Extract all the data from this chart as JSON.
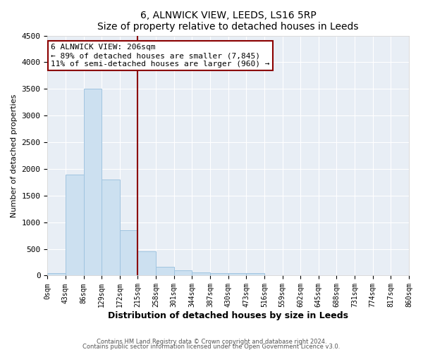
{
  "title": "6, ALNWICK VIEW, LEEDS, LS16 5RP",
  "subtitle": "Size of property relative to detached houses in Leeds",
  "xlabel": "Distribution of detached houses by size in Leeds",
  "ylabel": "Number of detached properties",
  "bar_color": "#cce0f0",
  "bar_edgecolor": "#a0c4e0",
  "background_color": "#e8eef5",
  "grid_color": "#ffffff",
  "fig_bg_color": "#ffffff",
  "bin_labels": [
    "0sqm",
    "43sqm",
    "86sqm",
    "129sqm",
    "172sqm",
    "215sqm",
    "258sqm",
    "301sqm",
    "344sqm",
    "387sqm",
    "430sqm",
    "473sqm",
    "516sqm",
    "559sqm",
    "602sqm",
    "645sqm",
    "688sqm",
    "731sqm",
    "774sqm",
    "817sqm",
    "860sqm"
  ],
  "bar_heights": [
    50,
    1900,
    3500,
    1800,
    850,
    450,
    170,
    100,
    60,
    50,
    40,
    50,
    0,
    0,
    0,
    0,
    0,
    0,
    0,
    0
  ],
  "property_line_color": "#8b0000",
  "annotation_text": "6 ALNWICK VIEW: 206sqm\n← 89% of detached houses are smaller (7,845)\n11% of semi-detached houses are larger (960) →",
  "annotation_box_edgecolor": "#8b0000",
  "ylim": [
    0,
    4500
  ],
  "yticks": [
    0,
    500,
    1000,
    1500,
    2000,
    2500,
    3000,
    3500,
    4000,
    4500
  ],
  "footnote1": "Contains HM Land Registry data © Crown copyright and database right 2024.",
  "footnote2": "Contains public sector information licensed under the Open Government Licence v3.0."
}
